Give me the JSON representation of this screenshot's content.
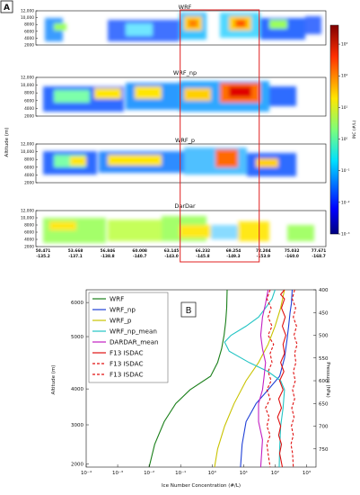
{
  "figure": {
    "panel_a_label": "A",
    "panel_b_label": "B"
  },
  "chart_data": [
    {
      "type": "heatmap",
      "panels": [
        {
          "title": "WRF"
        },
        {
          "title": "WRF_np"
        },
        {
          "title": "WRF_p"
        },
        {
          "title": "DarDar"
        }
      ],
      "ylabel": "Altitude (m)",
      "yticks": [
        "12,000",
        "10,000",
        "8000",
        "6000",
        "4000",
        "2000"
      ],
      "ylim": [
        2000,
        12000
      ],
      "xticks": [
        {
          "top": "50.471",
          "bottom": "-135.2"
        },
        {
          "top": "53.668",
          "bottom": "-137.1"
        },
        {
          "top": "56.846",
          "bottom": "-138.8"
        },
        {
          "top": "60.008",
          "bottom": "-140.7"
        },
        {
          "top": "63.145",
          "bottom": "-143.0"
        },
        {
          "top": "66.232",
          "bottom": "-145.8"
        },
        {
          "top": "69.254",
          "bottom": "-149.3"
        },
        {
          "top": "72.204",
          "bottom": "-153.9"
        },
        {
          "top": "75.032",
          "bottom": "-160.0"
        },
        {
          "top": "77.671",
          "bottom": "-168.7"
        }
      ],
      "highlight_box_xrange": [
        64.0,
        71.8
      ],
      "colorbar": {
        "label": "INC (#/L)",
        "ticks": [
          "10³",
          "10²",
          "10¹",
          "10⁰",
          "10⁻¹",
          "10⁻²",
          "10⁻³"
        ],
        "log_range": [
          -3,
          3.6
        ]
      },
      "grid": false
    },
    {
      "type": "line",
      "xlabel": "Ice Number Concentration (#/L)",
      "ylabel_left": "Altitude (m)",
      "ylabel_right": "Pressure (hPa)",
      "x_scale": "log",
      "xlim": [
        0.0001,
        2000
      ],
      "ylim": [
        400,
        790
      ],
      "y_inverted": true,
      "xticks": [
        {
          "v": 0.0001,
          "t": "10⁻⁴"
        },
        {
          "v": 0.001,
          "t": "10⁻³"
        },
        {
          "v": 0.01,
          "t": "10⁻²"
        },
        {
          "v": 0.1,
          "t": "10⁻¹"
        },
        {
          "v": 1,
          "t": "10⁰"
        },
        {
          "v": 10,
          "t": "10¹"
        },
        {
          "v": 100,
          "t": "10²"
        },
        {
          "v": 1000,
          "t": "10³"
        }
      ],
      "yticks": [
        400,
        450,
        500,
        550,
        600,
        650,
        700,
        750
      ],
      "alt_ticks": [
        {
          "p": 428,
          "t": "6000"
        },
        {
          "p": 503,
          "t": "5000"
        },
        {
          "p": 618,
          "t": "4000"
        },
        {
          "p": 697,
          "t": "3000"
        },
        {
          "p": 783,
          "t": "2000"
        }
      ],
      "legend_position": "upper-left",
      "series": [
        {
          "name": "WRF",
          "color": "#1a7f1a",
          "dash": "solid",
          "points": [
            [
              3,
              400
            ],
            [
              2.9,
              440
            ],
            [
              2.7,
              470
            ],
            [
              2.4,
              500
            ],
            [
              2,
              530
            ],
            [
              1.5,
              560
            ],
            [
              0.9,
              590
            ],
            [
              0.2,
              620
            ],
            [
              0.07,
              650
            ],
            [
              0.03,
              690
            ],
            [
              0.015,
              740
            ],
            [
              0.01,
              790
            ]
          ]
        },
        {
          "name": "WRF_np",
          "color": "#1f3fd6",
          "dash": "solid",
          "points": [
            [
              350,
              400
            ],
            [
              330,
              430
            ],
            [
              300,
              450
            ],
            [
              270,
              480
            ],
            [
              240,
              510
            ],
            [
              200,
              550
            ],
            [
              140,
              590
            ],
            [
              60,
              620
            ],
            [
              25,
              650
            ],
            [
              12,
              690
            ],
            [
              9,
              740
            ],
            [
              8,
              790
            ]
          ]
        },
        {
          "name": "WRF_p",
          "color": "#c9c300",
          "dash": "solid",
          "points": [
            [
              200,
              400
            ],
            [
              150,
              440
            ],
            [
              100,
              480
            ],
            [
              60,
              520
            ],
            [
              30,
              560
            ],
            [
              12,
              600
            ],
            [
              5,
              650
            ],
            [
              2.5,
              700
            ],
            [
              1.5,
              750
            ],
            [
              1.2,
              790
            ]
          ]
        },
        {
          "name": "WRF_np_mean",
          "color": "#22c4c4",
          "dash": "solid",
          "points": [
            [
              100,
              400
            ],
            [
              80,
              420
            ],
            [
              50,
              440
            ],
            [
              30,
              460
            ],
            [
              12,
              480
            ],
            [
              4,
              500
            ],
            [
              2.5,
              515
            ],
            [
              3.5,
              535
            ],
            [
              15,
              560
            ],
            [
              60,
              580
            ],
            [
              150,
              600
            ],
            [
              200,
              620
            ],
            [
              180,
              660
            ],
            [
              150,
              700
            ],
            [
              140,
              750
            ],
            [
              135,
              790
            ]
          ]
        },
        {
          "name": "DARDAR_mean",
          "color": "#c21fc2",
          "dash": "solid",
          "points": [
            [
              60,
              400
            ],
            [
              50,
              430
            ],
            [
              40,
              460
            ],
            [
              35,
              500
            ],
            [
              40,
              530
            ],
            [
              50,
              560
            ],
            [
              45,
              590
            ],
            [
              40,
              620
            ],
            [
              30,
              650
            ],
            [
              30,
              690
            ],
            [
              40,
              730
            ],
            [
              35,
              790
            ]
          ]
        },
        {
          "name": "F13 ISDAC",
          "color": "#e01010",
          "dash": "solid",
          "points": [
            [
              200,
              400
            ],
            [
              150,
              410
            ],
            [
              200,
              420
            ],
            [
              160,
              440
            ],
            [
              210,
              460
            ],
            [
              170,
              480
            ],
            [
              220,
              500
            ],
            [
              180,
              520
            ],
            [
              200,
              540
            ],
            [
              150,
              560
            ],
            [
              190,
              580
            ],
            [
              140,
              600
            ],
            [
              180,
              620
            ],
            [
              130,
              640
            ],
            [
              160,
              660
            ],
            [
              120,
              680
            ],
            [
              150,
              700
            ],
            [
              130,
              720
            ],
            [
              160,
              740
            ],
            [
              140,
              760
            ],
            [
              170,
              790
            ]
          ]
        },
        {
          "name": "F13 ISDAC",
          "color": "#e01010",
          "dash": "dashed",
          "points": [
            [
              70,
              400
            ],
            [
              55,
              420
            ],
            [
              75,
              440
            ],
            [
              60,
              460
            ],
            [
              80,
              480
            ],
            [
              60,
              500
            ],
            [
              90,
              520
            ],
            [
              70,
              540
            ],
            [
              80,
              560
            ],
            [
              60,
              580
            ],
            [
              75,
              600
            ],
            [
              55,
              620
            ],
            [
              70,
              640
            ],
            [
              50,
              660
            ],
            [
              65,
              680
            ],
            [
              55,
              700
            ],
            [
              70,
              720
            ],
            [
              55,
              740
            ],
            [
              60,
              760
            ],
            [
              70,
              790
            ]
          ]
        },
        {
          "name": "F13 ISDAC",
          "color": "#e01010",
          "dash": "dashed",
          "points": [
            [
              420,
              400
            ],
            [
              350,
              420
            ],
            [
              450,
              440
            ],
            [
              380,
              460
            ],
            [
              480,
              480
            ],
            [
              400,
              500
            ],
            [
              500,
              520
            ],
            [
              420,
              540
            ],
            [
              460,
              560
            ],
            [
              380,
              580
            ],
            [
              440,
              600
            ],
            [
              360,
              620
            ],
            [
              420,
              640
            ],
            [
              340,
              660
            ],
            [
              400,
              680
            ],
            [
              330,
              700
            ],
            [
              380,
              720
            ],
            [
              320,
              740
            ],
            [
              360,
              760
            ],
            [
              380,
              790
            ]
          ]
        }
      ]
    }
  ]
}
